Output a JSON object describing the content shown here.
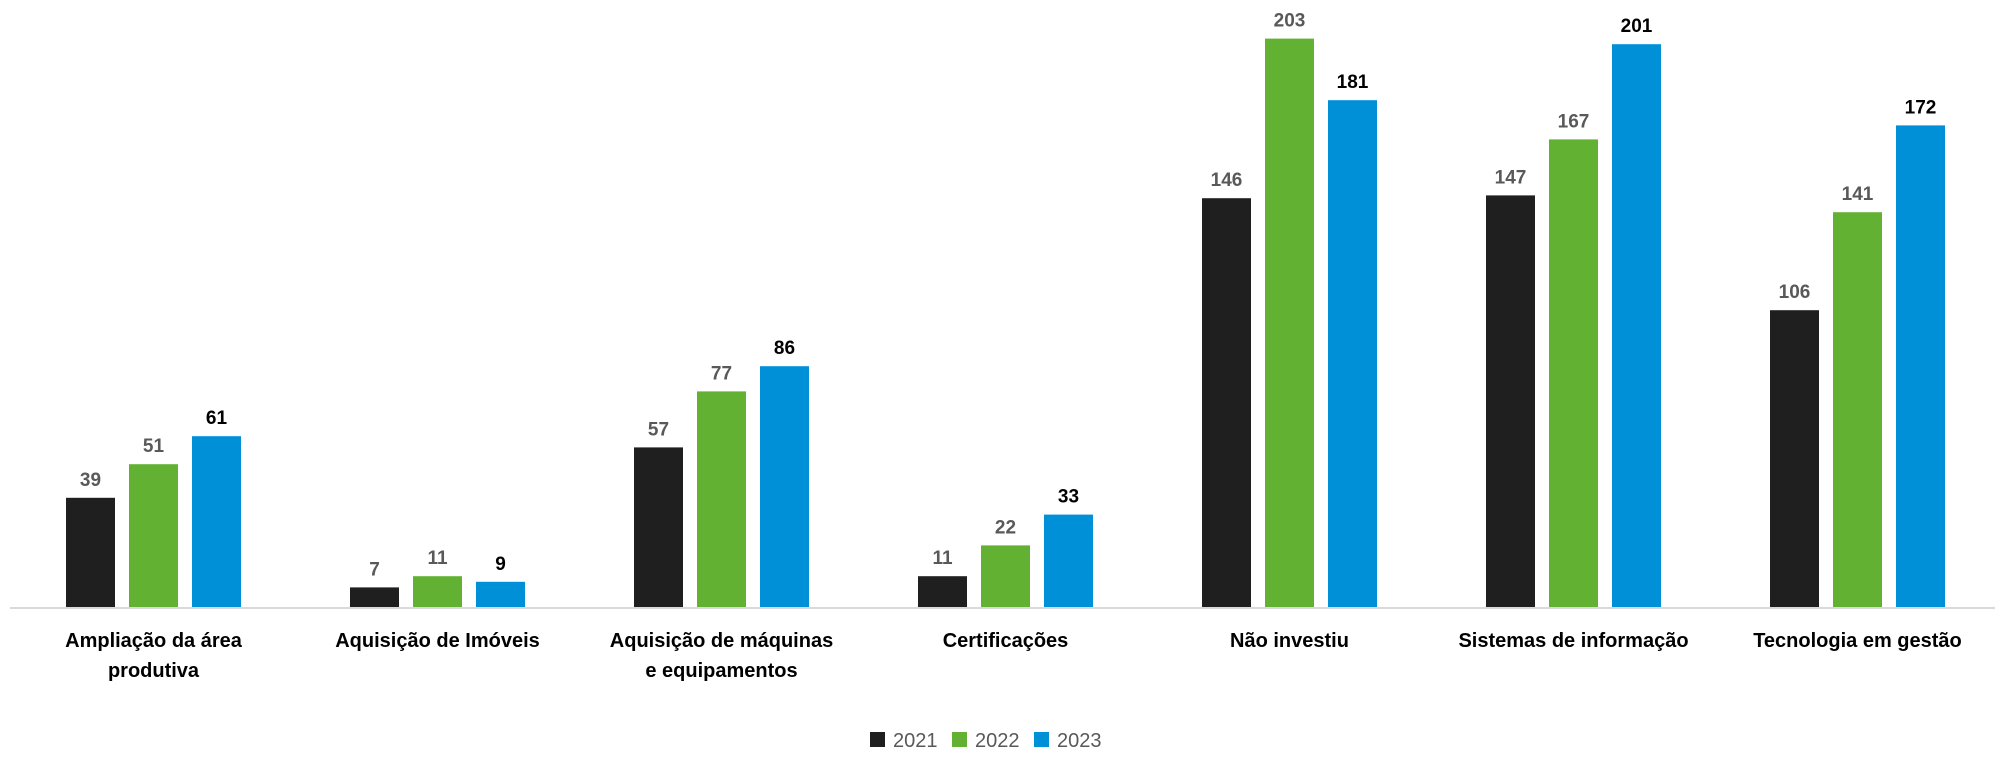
{
  "chart_data": {
    "type": "bar",
    "categories": [
      "Ampliação da área produtiva",
      "Aquisição de Imóveis",
      "Aquisição de máquinas e equipamentos",
      "Certificações",
      "Não investiu",
      "Sistemas de informação",
      "Tecnologia em gestão"
    ],
    "series": [
      {
        "name": "2021",
        "color": "#1f1f1f",
        "values": [
          39,
          7,
          57,
          11,
          146,
          147,
          106
        ]
      },
      {
        "name": "2022",
        "color": "#62b133",
        "values": [
          51,
          11,
          77,
          22,
          203,
          167,
          141
        ]
      },
      {
        "name": "2023",
        "color": "#0090d8",
        "values": [
          61,
          9,
          86,
          33,
          181,
          201,
          172
        ]
      }
    ],
    "title": "",
    "xlabel": "",
    "ylabel": "",
    "ylim": [
      0,
      210
    ],
    "grid": false,
    "legend": "bottom-center"
  }
}
